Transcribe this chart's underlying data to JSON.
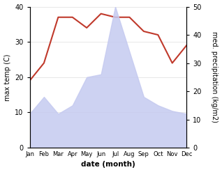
{
  "months": [
    "Jan",
    "Feb",
    "Mar",
    "Apr",
    "May",
    "Jun",
    "Jul",
    "Aug",
    "Sep",
    "Oct",
    "Nov",
    "Dec"
  ],
  "temperature": [
    19,
    24,
    37,
    37,
    34,
    38,
    37,
    37,
    33,
    32,
    24,
    29
  ],
  "precipitation": [
    12,
    18,
    12,
    15,
    25,
    26,
    50,
    34,
    18,
    15,
    13,
    12
  ],
  "temp_color": "#c0392b",
  "precip_fill_color": "#c5caf0",
  "precip_alpha": 0.85,
  "ylim_left": [
    0,
    40
  ],
  "ylim_right": [
    0,
    50
  ],
  "ylabel_left": "max temp (C)",
  "ylabel_right": "med. precipitation (kg/m2)",
  "xlabel": "date (month)",
  "fig_width": 3.18,
  "fig_height": 2.47,
  "dpi": 100
}
